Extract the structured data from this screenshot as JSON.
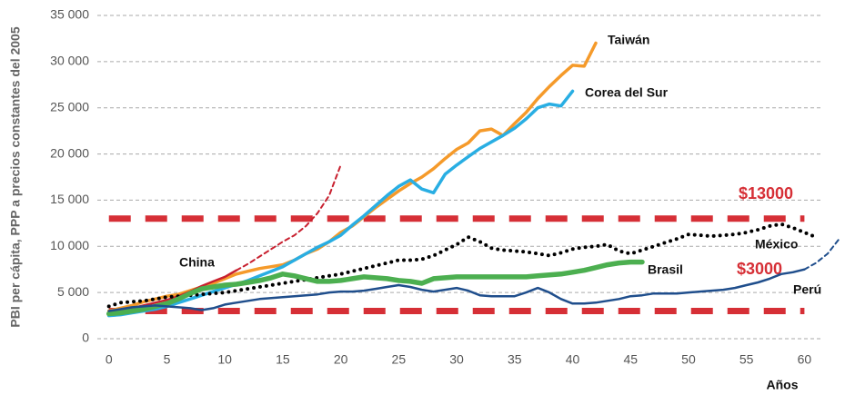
{
  "chart_data": {
    "type": "line",
    "ylabel": "PBI per cápita, PPP a precios constantes del 2005",
    "xlabel": "Años",
    "xlim": [
      -1,
      63.5
    ],
    "xticks": [
      0,
      5,
      10,
      15,
      20,
      25,
      30,
      35,
      40,
      45,
      50,
      55,
      60
    ],
    "ylim": [
      0,
      35000
    ],
    "yticks": [
      0,
      {
        "value": 5000,
        "label": "5 000"
      },
      {
        "value": 10000,
        "label": "10 000"
      },
      {
        "value": 15000,
        "label": "15 000"
      },
      {
        "value": 20000,
        "label": "20 000"
      },
      {
        "value": 25000,
        "label": "25 000"
      },
      {
        "value": 30000,
        "label": "30 000"
      },
      {
        "value": 35000,
        "label": "35 000"
      }
    ],
    "grid": true,
    "hlines": [
      {
        "value": 13000,
        "label": "$13000",
        "color": "#d62f36"
      },
      {
        "value": 3000,
        "label": "$3000",
        "color": "#d62f36"
      }
    ],
    "series": [
      {
        "name": "Taiwán",
        "color": "#f59a2a",
        "values": [
          3000,
          3300,
          3600,
          4000,
          4300,
          4600,
          4800,
          5200,
          5600,
          6000,
          6500,
          7000,
          7300,
          7600,
          7800,
          8000,
          8500,
          9200,
          9700,
          10500,
          11500,
          12200,
          13200,
          14200,
          15100,
          16000,
          16800,
          17500,
          18400,
          19500,
          20500,
          21200,
          22500,
          22700,
          22000,
          23300,
          24500,
          26000,
          27300,
          28500,
          29600,
          29500,
          32000
        ]
      },
      {
        "name": "Corea del Sur",
        "color": "#29aee3",
        "values": [
          2500,
          2600,
          2800,
          3000,
          3200,
          3500,
          3900,
          4300,
          4700,
          5100,
          5500,
          5900,
          6300,
          6800,
          7300,
          7800,
          8500,
          9200,
          9900,
          10500,
          11200,
          12300,
          13300,
          14400,
          15500,
          16500,
          17200,
          16200,
          15800,
          17800,
          18800,
          19700,
          20600,
          21300,
          22000,
          22800,
          23800,
          25000,
          25400,
          25200,
          26800
        ]
      },
      {
        "name": "China",
        "color": "#c8202f",
        "dash_after": 11,
        "values": [
          2800,
          3000,
          3300,
          3600,
          3900,
          4200,
          4600,
          5100,
          5700,
          6200,
          6700,
          7400,
          8100,
          8900,
          9700,
          10500,
          11200,
          12200,
          13600,
          15500,
          18800
        ]
      },
      {
        "name": "México",
        "color": "#000000",
        "dotted": true,
        "values": [
          3500,
          3900,
          4000,
          4100,
          4300,
          4500,
          4600,
          4700,
          4800,
          4900,
          5000,
          5200,
          5400,
          5600,
          5800,
          6000,
          6200,
          6400,
          6600,
          6800,
          7000,
          7300,
          7600,
          7900,
          8200,
          8500,
          8500,
          8600,
          9000,
          9600,
          10200,
          11000,
          10500,
          9800,
          9600,
          9500,
          9400,
          9200,
          9000,
          9300,
          9700,
          9900,
          10000,
          10200,
          9500,
          9200,
          9600,
          10000,
          10400,
          10800,
          11300,
          11200,
          11100,
          11200,
          11300,
          11500,
          11800,
          12200,
          12400,
          12000,
          11500,
          11000
        ]
      },
      {
        "name": "Brasil",
        "color": "#4caf50",
        "values": [
          2700,
          2800,
          3000,
          3200,
          3500,
          3800,
          4300,
          4900,
          5400,
          5600,
          5800,
          5900,
          6100,
          6300,
          6600,
          7000,
          6800,
          6500,
          6200,
          6200,
          6300,
          6500,
          6700,
          6600,
          6500,
          6300,
          6200,
          6000,
          6500,
          6600,
          6700,
          6700,
          6700,
          6700,
          6700,
          6700,
          6700,
          6800,
          6900,
          7000,
          7200,
          7400,
          7700,
          8000,
          8200,
          8300,
          8300
        ]
      },
      {
        "name": "Perú",
        "color": "#1f4e8c",
        "dash_after": 60,
        "values": [
          3000,
          3200,
          3400,
          3500,
          3600,
          3500,
          3400,
          3300,
          3100,
          3300,
          3700,
          3900,
          4100,
          4300,
          4400,
          4500,
          4600,
          4700,
          4800,
          5000,
          5100,
          5100,
          5200,
          5400,
          5600,
          5800,
          5600,
          5300,
          5100,
          5300,
          5500,
          5200,
          4700,
          4600,
          4600,
          4600,
          5000,
          5500,
          5000,
          4300,
          3800,
          3800,
          3900,
          4100,
          4300,
          4600,
          4700,
          4900,
          4900,
          4900,
          5000,
          5100,
          5200,
          5300,
          5500,
          5800,
          6100,
          6500,
          7000,
          7200,
          7500,
          8200,
          9200,
          10800
        ]
      }
    ]
  }
}
